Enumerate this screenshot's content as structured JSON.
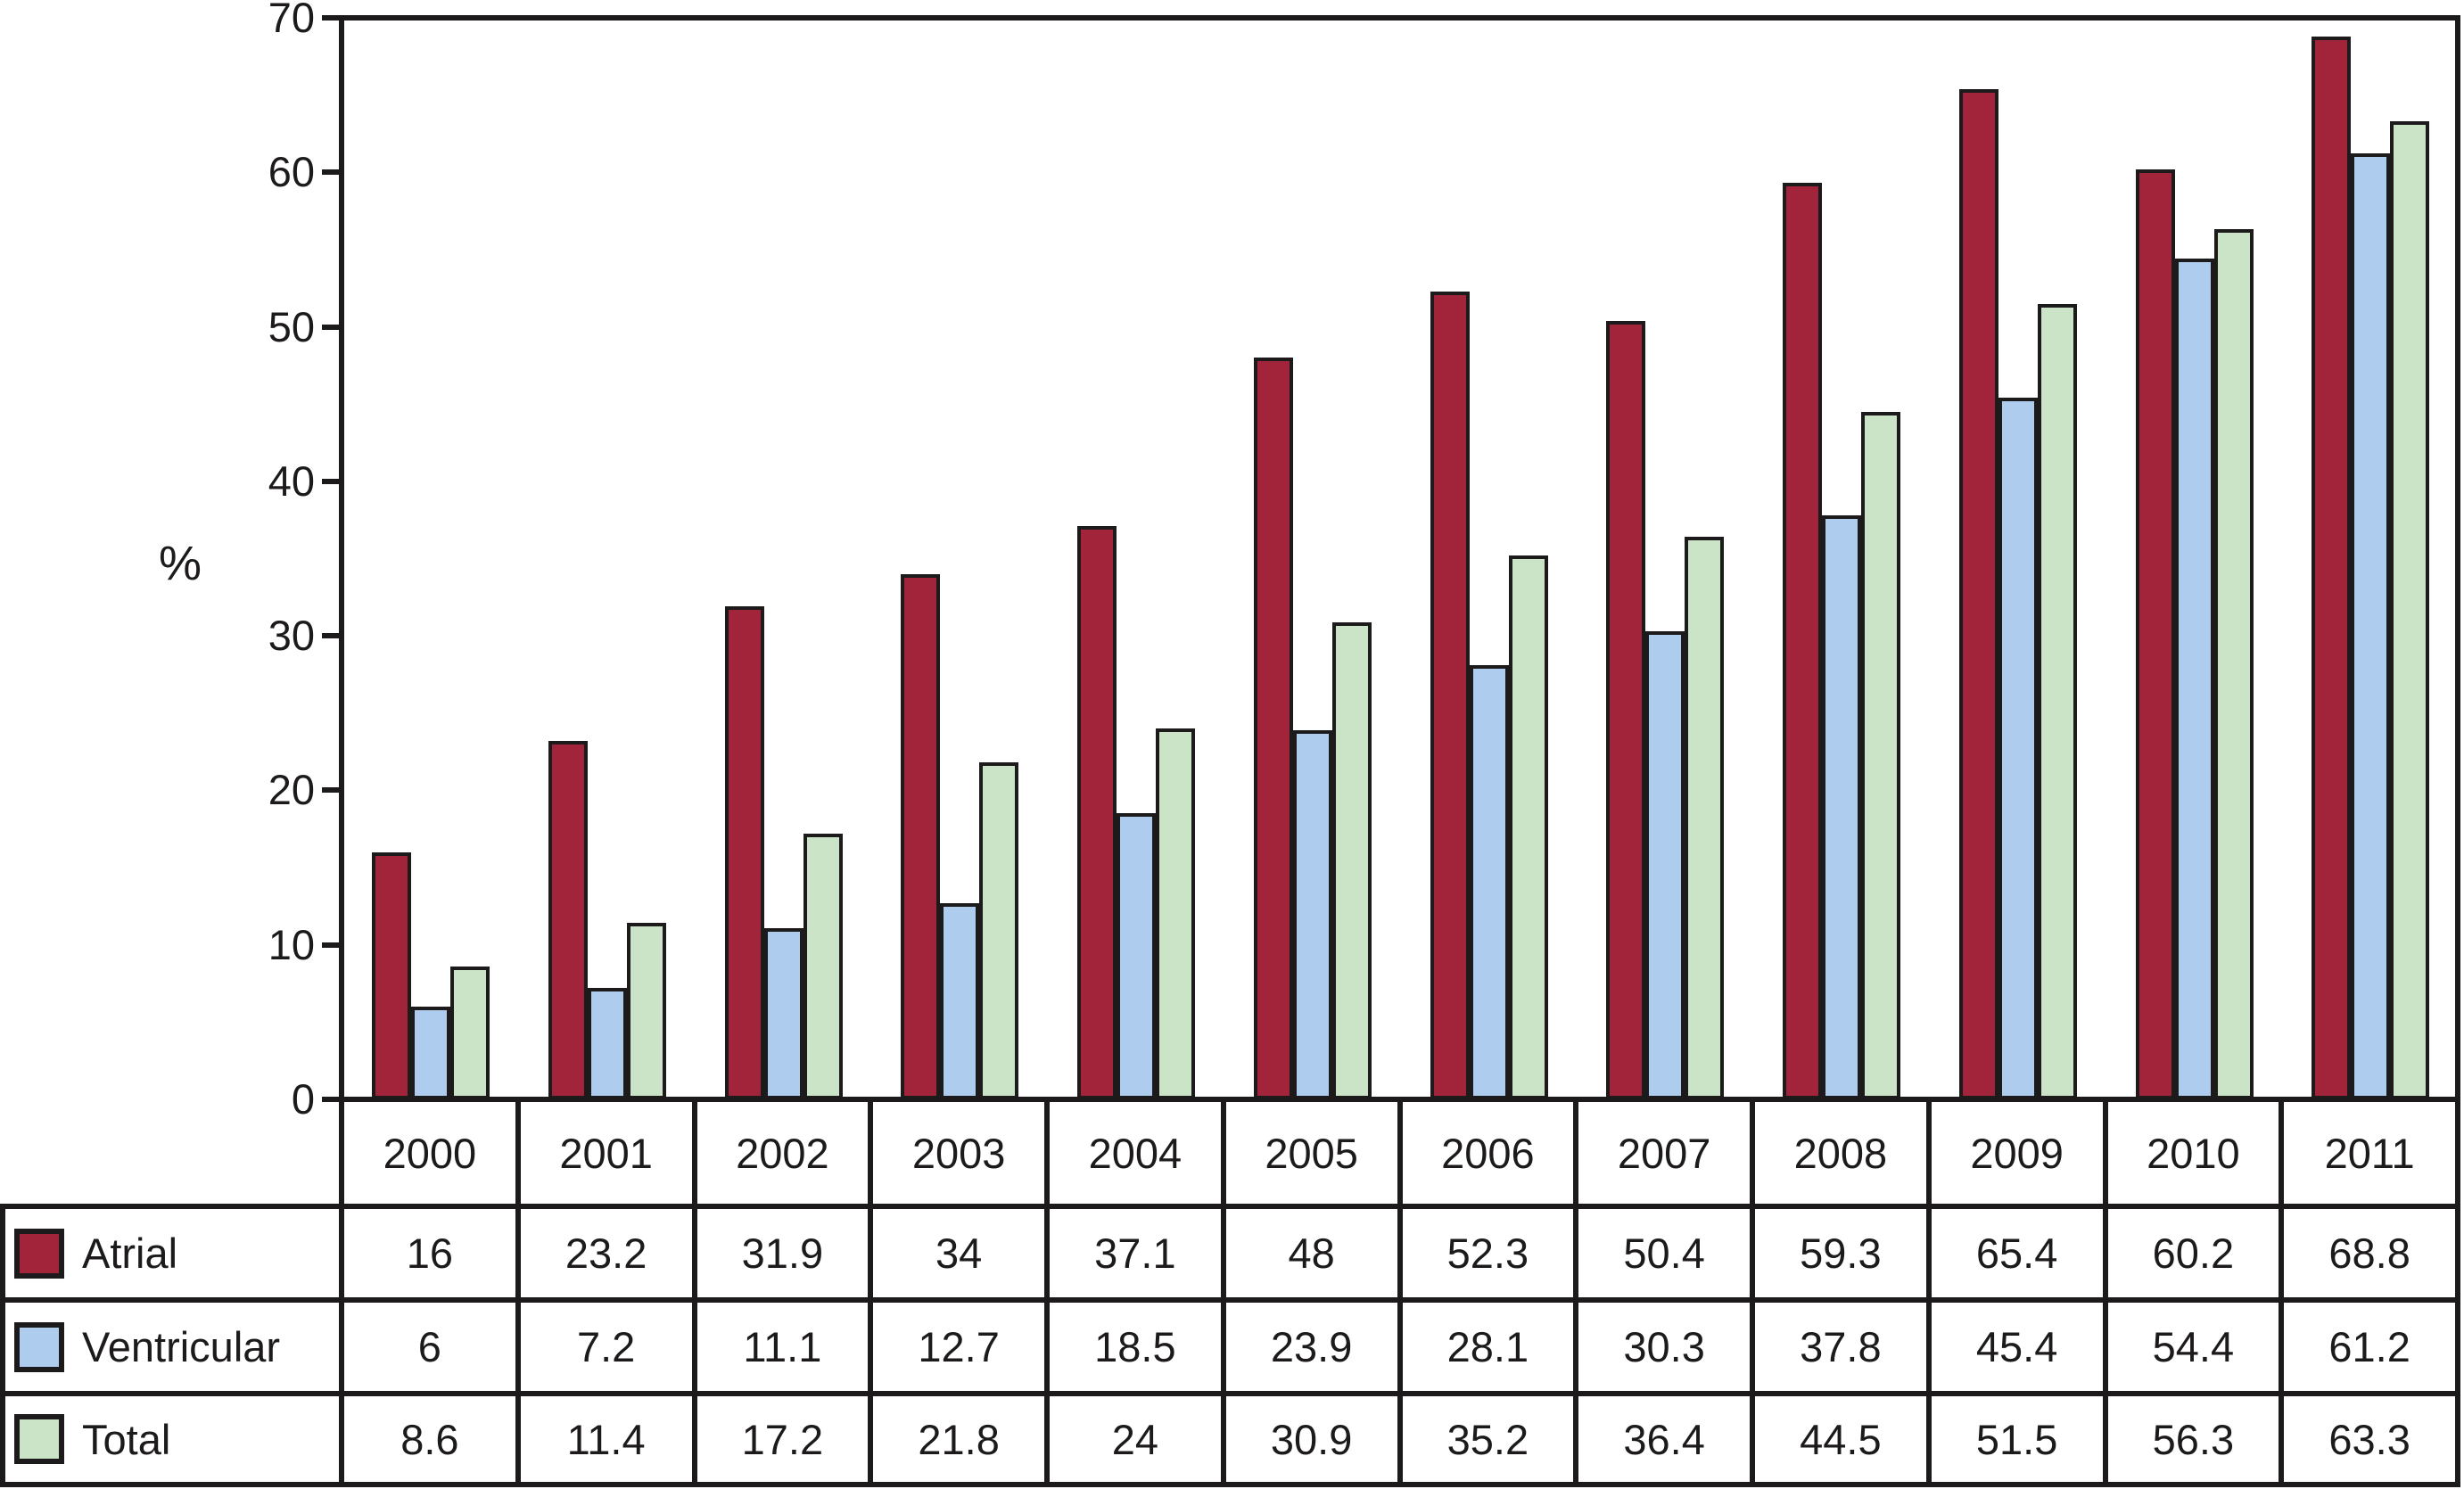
{
  "figure": {
    "y_axis_title": "%",
    "line_color": "#1d1a1b",
    "background_color": "#ffffff"
  },
  "chart_data": {
    "type": "bar",
    "title": "",
    "xlabel": "",
    "ylabel": "%",
    "ylim": [
      0,
      70
    ],
    "yticks": [
      0,
      10,
      20,
      30,
      40,
      50,
      60,
      70
    ],
    "grid": false,
    "legend_position": "table-left",
    "categories": [
      "2000",
      "2001",
      "2002",
      "2003",
      "2004",
      "2005",
      "2006",
      "2007",
      "2008",
      "2009",
      "2010",
      "2011"
    ],
    "series": [
      {
        "name": "Atrial",
        "color": "#A1243B",
        "values": [
          16,
          23.2,
          31.9,
          34,
          37.1,
          48,
          52.3,
          50.4,
          59.3,
          65.4,
          60.2,
          68.8
        ]
      },
      {
        "name": "Ventricular",
        "color": "#AECDEE",
        "values": [
          6,
          7.2,
          11.1,
          12.7,
          18.5,
          23.9,
          28.1,
          30.3,
          37.8,
          45.4,
          54.4,
          61.2
        ]
      },
      {
        "name": "Total",
        "color": "#CBE3C6",
        "values": [
          8.6,
          11.4,
          17.2,
          21.8,
          24,
          30.9,
          35.2,
          36.4,
          44.5,
          51.5,
          56.3,
          63.3
        ]
      }
    ]
  }
}
